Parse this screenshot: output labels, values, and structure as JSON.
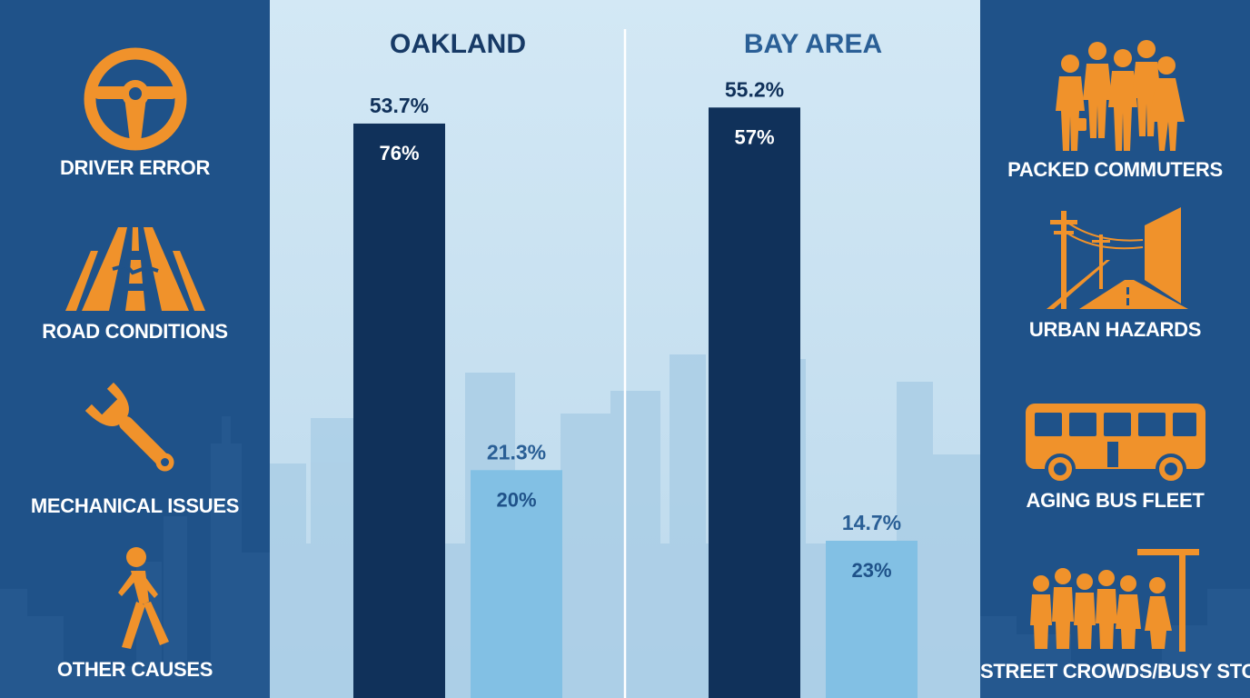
{
  "colors": {
    "side_bg": "#1f5289",
    "center_bg": "#c8e0f0",
    "icon_orange": "#f0922b",
    "bar_dark": "#10315a",
    "bar_light": "#82c0e4",
    "title_color": "#173a66",
    "bayarea_title_color": "#2a5f96"
  },
  "left_causes": [
    {
      "label": "DRIVER ERROR",
      "icon": "steering-wheel-icon"
    },
    {
      "label": "ROAD CONDITIONS",
      "icon": "cracked-road-icon"
    },
    {
      "label": "MECHANICAL ISSUES",
      "icon": "wrench-icon"
    },
    {
      "label": "OTHER CAUSES",
      "icon": "pedestrian-icon"
    }
  ],
  "right_causes": [
    {
      "label": "PACKED COMMUTERS",
      "icon": "commuters-icon"
    },
    {
      "label": "URBAN HAZARDS",
      "icon": "urban-street-icon"
    },
    {
      "label": "AGING BUS FLEET",
      "icon": "bus-icon"
    },
    {
      "label": "STREET CROWDS/BUSY STOPS",
      "icon": "bus-stop-crowd-icon"
    }
  ],
  "chart_data": {
    "type": "bar",
    "panels": [
      {
        "title": "OAKLAND",
        "bars": [
          {
            "value": 53.7,
            "top_label": "53.7%",
            "inner_label": "76%",
            "shade": "dark"
          },
          {
            "value": 21.3,
            "top_label": "21.3%",
            "inner_label": "20%",
            "shade": "light"
          }
        ]
      },
      {
        "title": "BAY AREA",
        "bars": [
          {
            "value": 55.2,
            "top_label": "55.2%",
            "inner_label": "57%",
            "shade": "dark"
          },
          {
            "value": 14.7,
            "top_label": "14.7%",
            "inner_label": "23%",
            "shade": "light"
          }
        ]
      }
    ],
    "grid": false,
    "legend": "none"
  }
}
